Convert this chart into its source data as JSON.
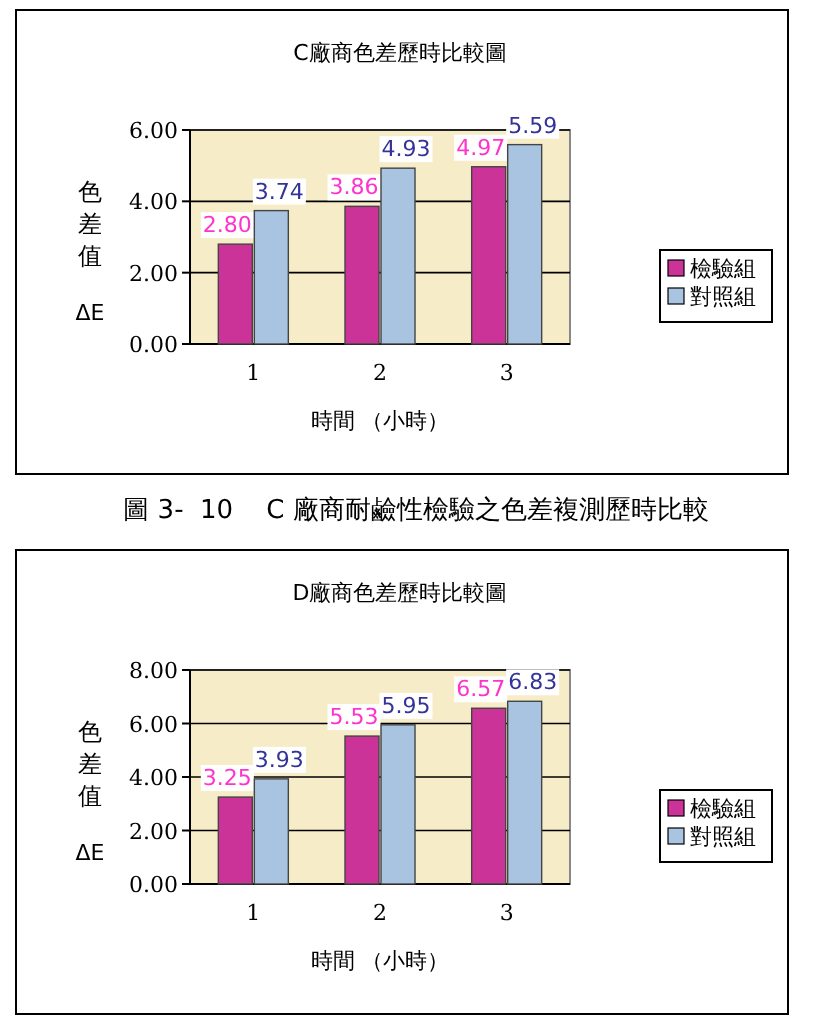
{
  "chart_data": [
    {
      "type": "bar",
      "title": "C廠商色差歷時比較圖",
      "xlabel": "時間 （小時）",
      "ylabel": "色差值 ΔE",
      "categories": [
        "1",
        "2",
        "3"
      ],
      "series": [
        {
          "name": "檢驗組",
          "color": "#cc3399",
          "values": [
            2.8,
            3.86,
            4.97
          ],
          "value_labels": [
            "2.80",
            "3.86",
            "4.97"
          ]
        },
        {
          "name": "對照組",
          "color": "#a8c4e0",
          "values": [
            3.74,
            4.93,
            5.59
          ],
          "value_labels": [
            "3.74",
            "4.93",
            "5.59"
          ]
        }
      ],
      "ylim": [
        0,
        6
      ],
      "yticks": [
        {
          "value": 0,
          "label": "0.00"
        },
        {
          "value": 2,
          "label": "2.00"
        },
        {
          "value": 4,
          "label": "4.00"
        },
        {
          "value": 6,
          "label": "6.00"
        }
      ],
      "grid": "y",
      "legend": "right",
      "annotations": [
        "圖 3-  10    C 廠商耐鹼性檢驗之色差複測歷時比較"
      ]
    },
    {
      "type": "bar",
      "title": "D廠商色差歷時比較圖",
      "xlabel": "時間 （小時）",
      "ylabel": "色差值 ΔE",
      "categories": [
        "1",
        "2",
        "3"
      ],
      "series": [
        {
          "name": "檢驗組",
          "color": "#cc3399",
          "values": [
            3.25,
            5.53,
            6.57
          ],
          "value_labels": [
            "3.25",
            "5.53",
            "6.57"
          ]
        },
        {
          "name": "對照組",
          "color": "#a8c4e0",
          "values": [
            3.93,
            5.95,
            6.83
          ],
          "value_labels": [
            "3.93",
            "5.95",
            "6.83"
          ]
        }
      ],
      "ylim": [
        0,
        8
      ],
      "yticks": [
        {
          "value": 0,
          "label": "0.00"
        },
        {
          "value": 2,
          "label": "2.00"
        },
        {
          "value": 4,
          "label": "4.00"
        },
        {
          "value": 6,
          "label": "6.00"
        },
        {
          "value": 8,
          "label": "8.00"
        }
      ],
      "grid": "y",
      "legend": "right"
    }
  ]
}
